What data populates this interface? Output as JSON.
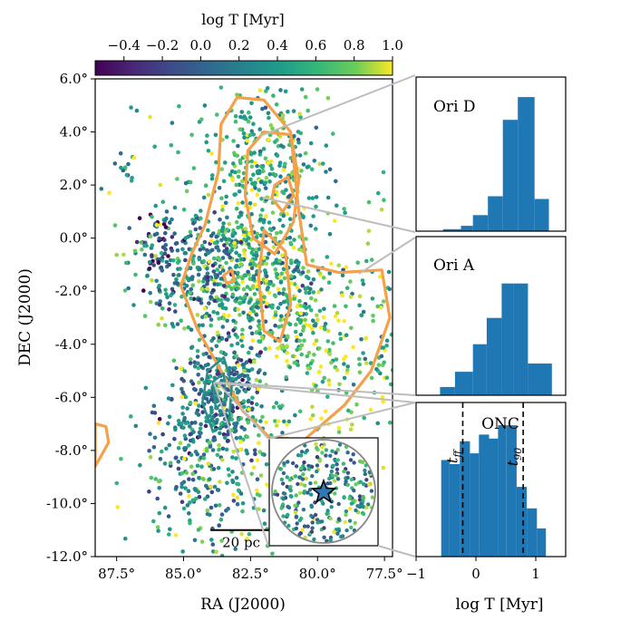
{
  "chart_data": [
    {
      "type": "scatter",
      "xlabel": "RA (J2000)",
      "ylabel": "DEC (J2000)",
      "xlim": [
        88.3,
        77.2
      ],
      "ylim": [
        -12.0,
        6.0
      ],
      "x_ticks": [
        "87.5°",
        "85.0°",
        "82.5°",
        "80.0°",
        "77.5°"
      ],
      "x_tick_values": [
        87.5,
        85.0,
        82.5,
        80.0,
        77.5
      ],
      "y_ticks": [
        "6.0°",
        "4.0°",
        "2.0°",
        "0.0°",
        "-2.0°",
        "-4.0°",
        "-6.0°",
        "-8.0°",
        "-10.0°",
        "-12.0°"
      ],
      "y_tick_values": [
        6,
        4,
        2,
        0,
        -2,
        -4,
        -6,
        -8,
        -10,
        -12
      ],
      "colorbar": {
        "label": "log T [Myr]",
        "range": [
          -0.55,
          1.0
        ],
        "ticks": [
          "−0.4",
          "−0.2",
          "0.0",
          "0.2",
          "0.4",
          "0.6",
          "0.8",
          "1.0"
        ],
        "tick_values": [
          -0.4,
          -0.2,
          0.0,
          0.2,
          0.4,
          0.6,
          0.8,
          1.0
        ],
        "colormap": "viridis"
      },
      "scale_bar": {
        "label": "20 pc",
        "ra_start": 84.0,
        "ra_end": 81.7,
        "dec": -11.0
      },
      "contour_color": "#f5a04a",
      "inset_star_color": "#2f78b4"
    },
    {
      "type": "bar",
      "label": "Ori D",
      "bin_edges": [
        -0.55,
        -0.25,
        -0.05,
        0.2,
        0.45,
        0.7,
        0.98,
        1.22
      ],
      "values": [
        0.015,
        0.04,
        0.12,
        0.26,
        0.83,
        1.0,
        0.24
      ],
      "color": "#1f77b4"
    },
    {
      "type": "bar",
      "label": "Ori A",
      "bin_edges": [
        -0.6,
        -0.35,
        -0.05,
        0.18,
        0.43,
        0.63,
        0.87,
        1.27
      ],
      "values": [
        0.06,
        0.17,
        0.37,
        0.56,
        0.81,
        0.81,
        0.23
      ],
      "color": "#1f77b4"
    },
    {
      "type": "bar",
      "label": "ONC",
      "xlabel": "log T [Myr]",
      "xlim": [
        -1,
        1.5
      ],
      "x_ticks": [
        "−1",
        "0",
        "1"
      ],
      "x_tick_values": [
        -1,
        0,
        1
      ],
      "bin_edges": [
        -0.58,
        -0.44,
        -0.27,
        -0.1,
        0.05,
        0.22,
        0.37,
        0.51,
        0.68,
        0.85,
        1.02,
        1.17
      ],
      "values": [
        0.72,
        0.69,
        0.86,
        0.77,
        0.91,
        0.88,
        0.98,
        0.98,
        0.52,
        0.36,
        0.21
      ],
      "color": "#1f77b4",
      "vlines": [
        {
          "label": "t_ff",
          "x": -0.22
        },
        {
          "label": "t_90",
          "x": 0.79
        }
      ]
    }
  ]
}
